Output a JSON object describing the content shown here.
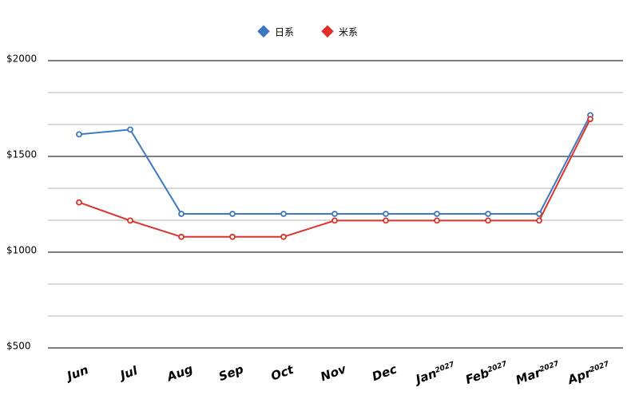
{
  "chart_data": {
    "type": "line",
    "categories": [
      "Jun",
      "Jul",
      "Aug",
      "Sep",
      "Oct",
      "Nov",
      "Dec",
      "Jan",
      "Feb",
      "Mar",
      "Apr"
    ],
    "category_superscripts": [
      null,
      null,
      null,
      null,
      null,
      null,
      null,
      "2027",
      "2027",
      "2027",
      "2027"
    ],
    "series": [
      {
        "name": "日系",
        "color": "#3a78c4",
        "values": [
          1615,
          1640,
          1200,
          1200,
          1200,
          1200,
          1200,
          1200,
          1200,
          1200,
          1715
        ]
      },
      {
        "name": "米系",
        "color": "#e0302a",
        "values": [
          1260,
          1165,
          1080,
          1080,
          1080,
          1165,
          1165,
          1165,
          1165,
          1165,
          1695
        ]
      }
    ],
    "ylim": [
      500,
      2000
    ],
    "yticks": [
      {
        "value": 500,
        "label": "$500"
      },
      {
        "value": 1000,
        "label": "$1000"
      },
      {
        "value": 1500,
        "label": "$1500"
      },
      {
        "value": 2000,
        "label": "$2000"
      }
    ],
    "minor_yticks": [
      666.67,
      833.33,
      1166.67,
      1333.33,
      1666.67,
      1833.33
    ],
    "grid": true,
    "legend": "top"
  }
}
